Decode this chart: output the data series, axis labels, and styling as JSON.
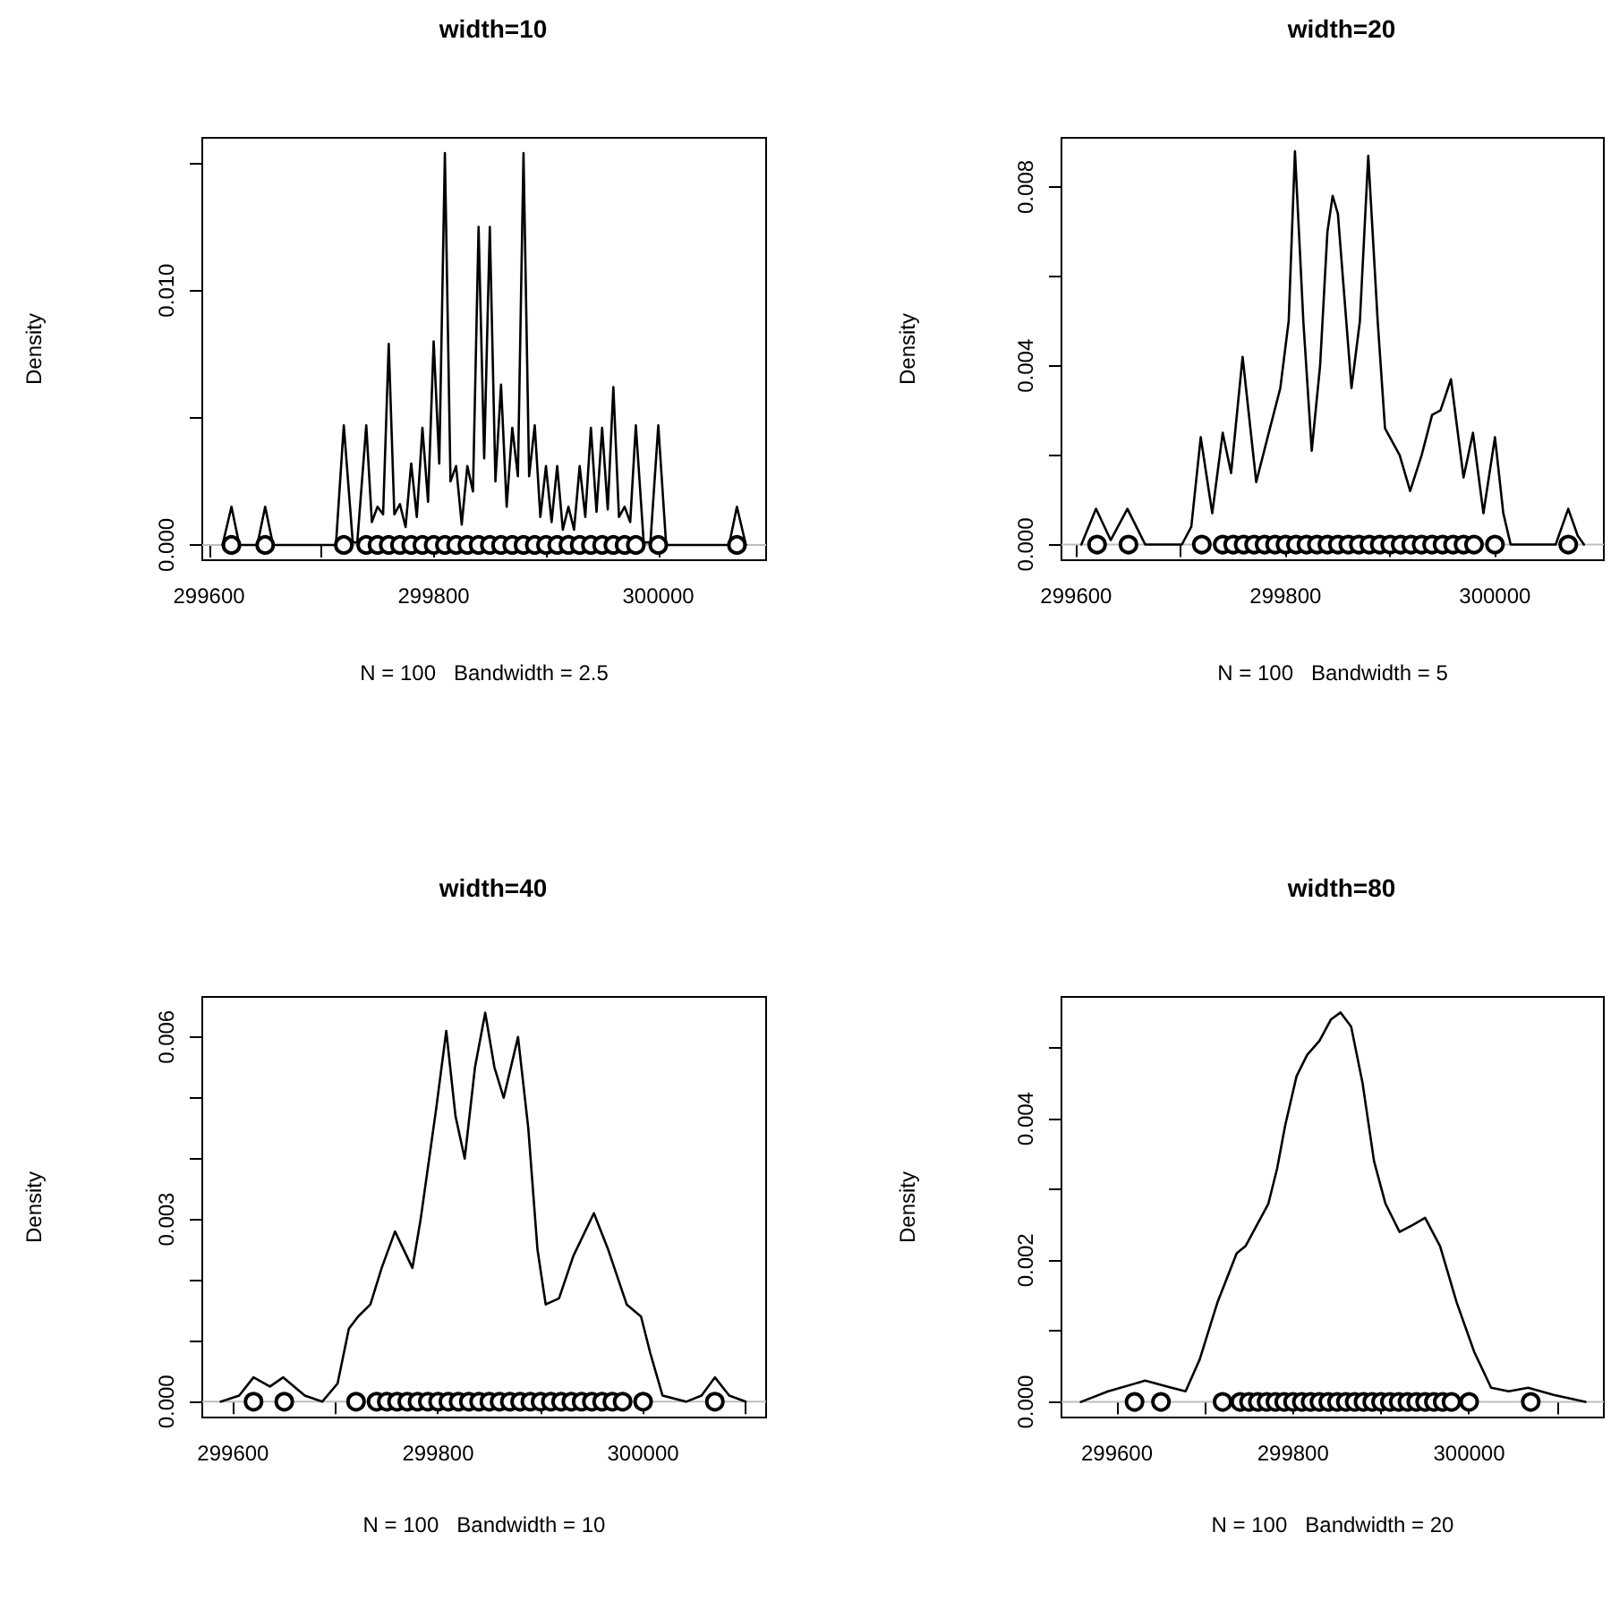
{
  "chart_data": [
    {
      "type": "line",
      "title": "width=10",
      "xlabel": "N = 100   Bandwidth = 2.5",
      "ylabel": "Density",
      "xlim": [
        299594,
        300096
      ],
      "ylim": [
        -0.0006,
        0.016
      ],
      "xticks": [
        299600,
        {
          "value": 299700,
          "label": null
        },
        299800,
        {
          "value": 299900,
          "label": null
        },
        300000
      ],
      "yticks": [
        {
          "value": 0,
          "label": "0.000"
        },
        {
          "value": 0.005,
          "label": null
        },
        {
          "value": 0.01,
          "label": "0.010"
        },
        {
          "value": 0.015,
          "label": null
        }
      ],
      "ref_lines": [
        {
          "axis": "y",
          "value": 0,
          "color": "#bebebe"
        }
      ],
      "series": [
        {
          "type": "line",
          "color": "#000000",
          "x": [
            299612,
            299620,
            299627,
            299643,
            299650,
            299657,
            299713,
            299720,
            299728,
            299732,
            299740,
            299745,
            299750,
            299755,
            299760,
            299765,
            299770,
            299775,
            299780,
            299785,
            299790,
            299795,
            299800,
            299805,
            299810,
            299815,
            299820,
            299825,
            299830,
            299835,
            299840,
            299845,
            299850,
            299855,
            299860,
            299865,
            299870,
            299875,
            299880,
            299885,
            299890,
            299895,
            299900,
            299905,
            299910,
            299915,
            299920,
            299925,
            299930,
            299935,
            299940,
            299945,
            299950,
            299955,
            299960,
            299965,
            299970,
            299975,
            299980,
            299987,
            299993,
            300000,
            300007,
            300063,
            300070,
            300078
          ],
          "values": [
            0,
            0.0015,
            0,
            0,
            0.0015,
            0,
            0,
            0.0047,
            0.0001,
            0.0001,
            0.0047,
            0.0009,
            0.0015,
            0.0012,
            0.0079,
            0.0012,
            0.0016,
            0.0007,
            0.0032,
            0.0011,
            0.0046,
            0.0017,
            0.008,
            0.0032,
            0.0154,
            0.0025,
            0.0031,
            0.0008,
            0.0031,
            0.0021,
            0.0125,
            0.0034,
            0.0125,
            0.0025,
            0.0063,
            0.0015,
            0.0046,
            0.0027,
            0.0154,
            0.0027,
            0.0047,
            0.0011,
            0.0031,
            0.0009,
            0.0031,
            0.0006,
            0.0015,
            0.0006,
            0.0031,
            0.0011,
            0.0046,
            0.0013,
            0.0046,
            0.0014,
            0.0062,
            0.0011,
            0.0015,
            0.0009,
            0.0047,
            0.0001,
            0.0001,
            0.0047,
            0,
            0,
            0.0015,
            0
          ]
        },
        {
          "type": "scatter",
          "color": "#000000",
          "marker": "circle",
          "x": [
            299620,
            299650,
            299720,
            299740,
            299750,
            299760,
            299770,
            299780,
            299790,
            299800,
            299810,
            299820,
            299830,
            299840,
            299850,
            299860,
            299870,
            299880,
            299890,
            299900,
            299910,
            299920,
            299930,
            299940,
            299950,
            299960,
            299970,
            299980,
            300000,
            300070
          ],
          "values": [
            0,
            0,
            0,
            0,
            0,
            0,
            0,
            0,
            0,
            0,
            0,
            0,
            0,
            0,
            0,
            0,
            0,
            0,
            0,
            0,
            0,
            0,
            0,
            0,
            0,
            0,
            0,
            0,
            0,
            0
          ]
        }
      ]
    },
    {
      "type": "line",
      "title": "width=20",
      "xlabel": "N = 100   Bandwidth = 5",
      "ylabel": "Density",
      "xlim": [
        299586,
        300104
      ],
      "ylim": [
        -0.00035,
        0.0091
      ],
      "xticks": [
        299600,
        {
          "value": 299700,
          "label": null
        },
        299800,
        {
          "value": 299900,
          "label": null
        },
        300000
      ],
      "yticks": [
        {
          "value": 0,
          "label": "0.000"
        },
        {
          "value": 0.002,
          "label": null
        },
        {
          "value": 0.004,
          "label": "0.004"
        },
        {
          "value": 0.006,
          "label": null
        },
        {
          "value": 0.008,
          "label": "0.008"
        }
      ],
      "ref_lines": [
        {
          "axis": "y",
          "value": 0,
          "color": "#bebebe"
        }
      ],
      "series": [
        {
          "type": "line",
          "color": "#000000",
          "x": [
            299605,
            299619,
            299633,
            299649,
            299666,
            299701,
            299710,
            299719,
            299730,
            299740,
            299748,
            299759,
            299772,
            299784,
            299795,
            299803,
            299809,
            299817,
            299825,
            299833,
            299840,
            299845,
            299850,
            299863,
            299871,
            299879,
            299888,
            299895,
            299909,
            299919,
            299930,
            299940,
            299948,
            299958,
            299970,
            299979,
            299989,
            300000,
            300008,
            300015,
            300058,
            300070,
            300079,
            300085
          ],
          "values": [
            0,
            0.0008,
            0.0001,
            0.0008,
            0,
            0,
            0.0004,
            0.0024,
            0.0007,
            0.0025,
            0.0016,
            0.0042,
            0.0014,
            0.0025,
            0.0035,
            0.005,
            0.0088,
            0.005,
            0.0021,
            0.004,
            0.007,
            0.0078,
            0.0074,
            0.0035,
            0.005,
            0.0087,
            0.005,
            0.0026,
            0.002,
            0.0012,
            0.002,
            0.0029,
            0.003,
            0.0037,
            0.0015,
            0.0025,
            0.0007,
            0.0024,
            0.0007,
            0,
            0,
            0.0008,
            0.0002,
            0
          ]
        },
        {
          "type": "scatter",
          "color": "#000000",
          "marker": "circle",
          "x": [
            299620,
            299650,
            299720,
            299740,
            299750,
            299760,
            299770,
            299780,
            299790,
            299800,
            299810,
            299820,
            299830,
            299840,
            299850,
            299860,
            299870,
            299880,
            299890,
            299900,
            299910,
            299920,
            299930,
            299940,
            299950,
            299960,
            299970,
            299980,
            300000,
            300070
          ],
          "values": [
            0,
            0,
            0,
            0,
            0,
            0,
            0,
            0,
            0,
            0,
            0,
            0,
            0,
            0,
            0,
            0,
            0,
            0,
            0,
            0,
            0,
            0,
            0,
            0,
            0,
            0,
            0,
            0,
            0,
            0
          ]
        }
      ]
    },
    {
      "type": "line",
      "title": "width=40",
      "xlabel": "N = 100   Bandwidth = 10",
      "ylabel": "Density",
      "xlim": [
        299570,
        300120
      ],
      "ylim": [
        -0.00026,
        0.00666
      ],
      "xticks": [
        299600,
        {
          "value": 299700,
          "label": null
        },
        299800,
        {
          "value": 299900,
          "label": null
        },
        300000,
        {
          "value": 300100,
          "label": null
        }
      ],
      "yticks": [
        {
          "value": 0,
          "label": "0.000"
        },
        {
          "value": 0.001,
          "label": null
        },
        {
          "value": 0.002,
          "label": null
        },
        {
          "value": 0.003,
          "label": "0.003"
        },
        {
          "value": 0.004,
          "label": null
        },
        {
          "value": 0.005,
          "label": null
        },
        {
          "value": 0.006,
          "label": "0.006"
        }
      ],
      "ref_lines": [
        {
          "axis": "y",
          "value": 0,
          "color": "#bebebe"
        }
      ],
      "series": [
        {
          "type": "line",
          "color": "#000000",
          "x": [
            299588,
            299606,
            299620,
            299636,
            299649,
            299670,
            299687,
            299702,
            299713,
            299722,
            299734,
            299745,
            299758,
            299775,
            299783,
            299798,
            299808,
            299817,
            299826,
            299836,
            299846,
            299855,
            299864,
            299878,
            299888,
            299897,
            299905,
            299918,
            299932,
            299952,
            299966,
            299984,
            299998,
            300007,
            300019,
            300042,
            300057,
            300070,
            300084,
            300100
          ],
          "values": [
            0,
            0.0001,
            0.0004,
            0.00025,
            0.0004,
            0.0001,
            0,
            0.0003,
            0.0012,
            0.0014,
            0.0016,
            0.0022,
            0.0028,
            0.0022,
            0.003,
            0.0048,
            0.0061,
            0.0047,
            0.004,
            0.0055,
            0.0064,
            0.0055,
            0.005,
            0.006,
            0.0045,
            0.0025,
            0.0016,
            0.0017,
            0.0024,
            0.0031,
            0.0025,
            0.0016,
            0.0014,
            0.0008,
            0.0001,
            0,
            0.0001,
            0.0004,
            0.0001,
            0
          ]
        },
        {
          "type": "scatter",
          "color": "#000000",
          "marker": "circle",
          "x": [
            299620,
            299650,
            299720,
            299740,
            299750,
            299760,
            299770,
            299780,
            299790,
            299800,
            299810,
            299820,
            299830,
            299840,
            299850,
            299860,
            299870,
            299880,
            299890,
            299900,
            299910,
            299920,
            299930,
            299940,
            299950,
            299960,
            299970,
            299980,
            300000,
            300070
          ],
          "values": [
            0,
            0,
            0,
            0,
            0,
            0,
            0,
            0,
            0,
            0,
            0,
            0,
            0,
            0,
            0,
            0,
            0,
            0,
            0,
            0,
            0,
            0,
            0,
            0,
            0,
            0,
            0,
            0,
            0,
            0
          ]
        }
      ]
    },
    {
      "type": "line",
      "title": "width=80",
      "xlabel": "N = 100   Bandwidth = 20",
      "ylabel": "Density",
      "xlim": [
        299537,
        300153
      ],
      "ylim": [
        -0.00022,
        0.00572
      ],
      "xticks": [
        299600,
        {
          "value": 299700,
          "label": null
        },
        299800,
        {
          "value": 299900,
          "label": null
        },
        300000,
        {
          "value": 300100,
          "label": null
        }
      ],
      "yticks": [
        {
          "value": 0,
          "label": "0.000"
        },
        {
          "value": 0.001,
          "label": null
        },
        {
          "value": 0.002,
          "label": "0.002"
        },
        {
          "value": 0.003,
          "label": null
        },
        {
          "value": 0.004,
          "label": "0.004"
        },
        {
          "value": 0.005,
          "label": null
        }
      ],
      "ref_lines": [
        {
          "axis": "y",
          "value": 0,
          "color": "#bebebe"
        }
      ],
      "series": [
        {
          "type": "line",
          "color": "#000000",
          "x": [
            299559,
            299590,
            299632,
            299662,
            299678,
            299694,
            299714,
            299736,
            299746,
            299772,
            299782,
            299791,
            299804,
            299816,
            299830,
            299843,
            299854,
            299866,
            299879,
            299892,
            299905,
            299921,
            299936,
            299950,
            299967,
            299986,
            300006,
            300025,
            300045,
            300067,
            300096,
            300132
          ],
          "values": [
            0,
            0.00015,
            0.0003,
            0.0002,
            0.00015,
            0.0006,
            0.0014,
            0.0021,
            0.0022,
            0.0028,
            0.0033,
            0.0039,
            0.0046,
            0.0049,
            0.0051,
            0.0054,
            0.0055,
            0.0053,
            0.0045,
            0.0034,
            0.0028,
            0.0024,
            0.0025,
            0.0026,
            0.0022,
            0.0014,
            0.0007,
            0.0002,
            0.00015,
            0.0002,
            0.0001,
            0
          ]
        },
        {
          "type": "scatter",
          "color": "#000000",
          "marker": "circle",
          "x": [
            299620,
            299650,
            299720,
            299740,
            299750,
            299760,
            299770,
            299780,
            299790,
            299800,
            299810,
            299820,
            299830,
            299840,
            299850,
            299860,
            299870,
            299880,
            299890,
            299900,
            299910,
            299920,
            299930,
            299940,
            299950,
            299960,
            299970,
            299980,
            300000,
            300070
          ],
          "values": [
            0,
            0,
            0,
            0,
            0,
            0,
            0,
            0,
            0,
            0,
            0,
            0,
            0,
            0,
            0,
            0,
            0,
            0,
            0,
            0,
            0,
            0,
            0,
            0,
            0,
            0,
            0,
            0,
            0,
            0
          ]
        }
      ]
    }
  ]
}
